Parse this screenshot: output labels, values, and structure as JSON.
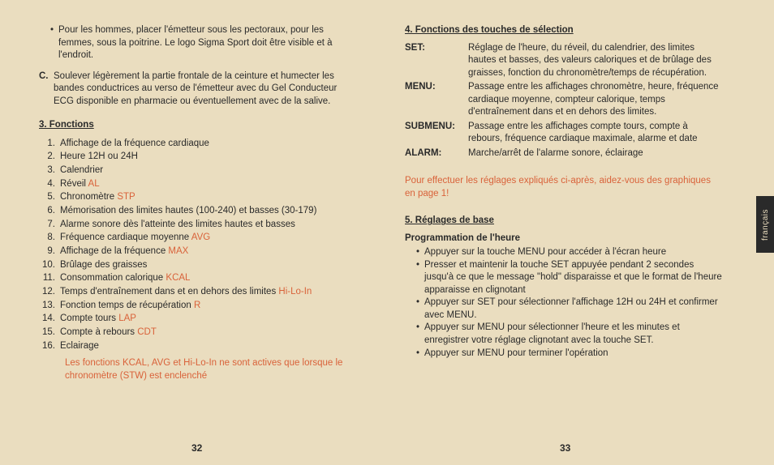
{
  "colors": {
    "background": "#eaddbf",
    "text": "#2a2a2a",
    "accent": "#d9623a",
    "tab_bg": "#2a2a2a",
    "tab_text": "#eaddbf"
  },
  "left": {
    "intro_bullet": "Pour les hommes, placer l'émetteur sous les pectoraux, pour les femmes, sous la poitrine. Le logo Sigma Sport doit être visible et à l'endroit.",
    "c_letter": "C.",
    "c_text": "Soulever légèrement la partie frontale de la ceinture et humecter les bandes conductrices au verso de l'émetteur avec du Gel Conducteur ECG disponible en pharmacie ou éventuellement avec de la salive.",
    "section3": "3. Fonctions",
    "items": [
      {
        "n": "1.",
        "t": "Affichage de la fréquence cardiaque",
        "a": ""
      },
      {
        "n": "2.",
        "t": "Heure 12H ou 24H",
        "a": ""
      },
      {
        "n": "3.",
        "t": "Calendrier",
        "a": ""
      },
      {
        "n": "4.",
        "t": "Réveil ",
        "a": "AL"
      },
      {
        "n": "5.",
        "t": "Chronomètre ",
        "a": "STP"
      },
      {
        "n": "6.",
        "t": "Mémorisation des limites hautes (100-240) et basses (30-179)",
        "a": ""
      },
      {
        "n": "7.",
        "t": "Alarme sonore dès l'atteinte des limites hautes et basses",
        "a": ""
      },
      {
        "n": "8.",
        "t": "Fréquence cardiaque moyenne ",
        "a": "AVG"
      },
      {
        "n": "9.",
        "t": "Affichage de la fréquence ",
        "a": "MAX"
      },
      {
        "n": "10.",
        "t": "Brûlage des graisses",
        "a": ""
      },
      {
        "n": "11.",
        "t": "Consommation calorique ",
        "a": "KCAL"
      },
      {
        "n": "12.",
        "t": "Temps d'entraînement dans et en dehors des limites ",
        "a": "Hi-Lo-In"
      },
      {
        "n": "13.",
        "t": "Fonction temps de récupération ",
        "a": "R"
      },
      {
        "n": "14.",
        "t": "Compte tours ",
        "a": "LAP"
      },
      {
        "n": "15.",
        "t": "Compte à rebours ",
        "a": "CDT"
      },
      {
        "n": "16.",
        "t": "Eclairage",
        "a": ""
      }
    ],
    "note": "Les fonctions KCAL, AVG et Hi-Lo-In ne sont actives que lorsque le chronomètre (STW) est enclenché",
    "page": "32"
  },
  "right": {
    "section4": "4. Fonctions des touches de sélection",
    "defs": [
      {
        "term": "SET:",
        "desc": "Réglage de l'heure, du réveil, du calendrier, des limites hautes et basses, des valeurs caloriques et de brûlage des graisses, fonction du chronomètre/temps de récupération."
      },
      {
        "term": "MENU:",
        "desc": "Passage entre les affichages chronomètre, heure, fréquence cardiaque moyenne, compteur calorique, temps d'entraînement dans et en dehors des limites."
      },
      {
        "term": "SUBMENU:",
        "desc": "Passage entre les affichages compte tours, compte à rebours, fréquence cardiaque maximale, alarme et date"
      },
      {
        "term": "ALARM:",
        "desc": "Marche/arrêt de l'alarme sonore, éclairage"
      }
    ],
    "red_para": "Pour effectuer les réglages expliqués ci-après, aidez-vous des graphiques en page 1!",
    "section5": "5. Réglages de base",
    "prog_head": "Programmation de l'heure",
    "prog_items": [
      "Appuyer sur la touche MENU pour accéder à l'écran heure",
      "Presser et maintenir la touche SET appuyée pendant 2 secondes jusqu'à ce que le message \"hold\" disparaisse et que le format de l'heure apparaisse en clignotant",
      "Appuyer sur SET  pour sélectionner l'affichage 12H ou 24H et confirmer avec MENU.",
      "Appuyer sur MENU pour sélectionner l'heure et les minutes et enregistrer votre réglage clignotant avec la touche SET.",
      "Appuyer sur MENU pour terminer l'opération"
    ],
    "page": "33"
  },
  "tab": "français"
}
